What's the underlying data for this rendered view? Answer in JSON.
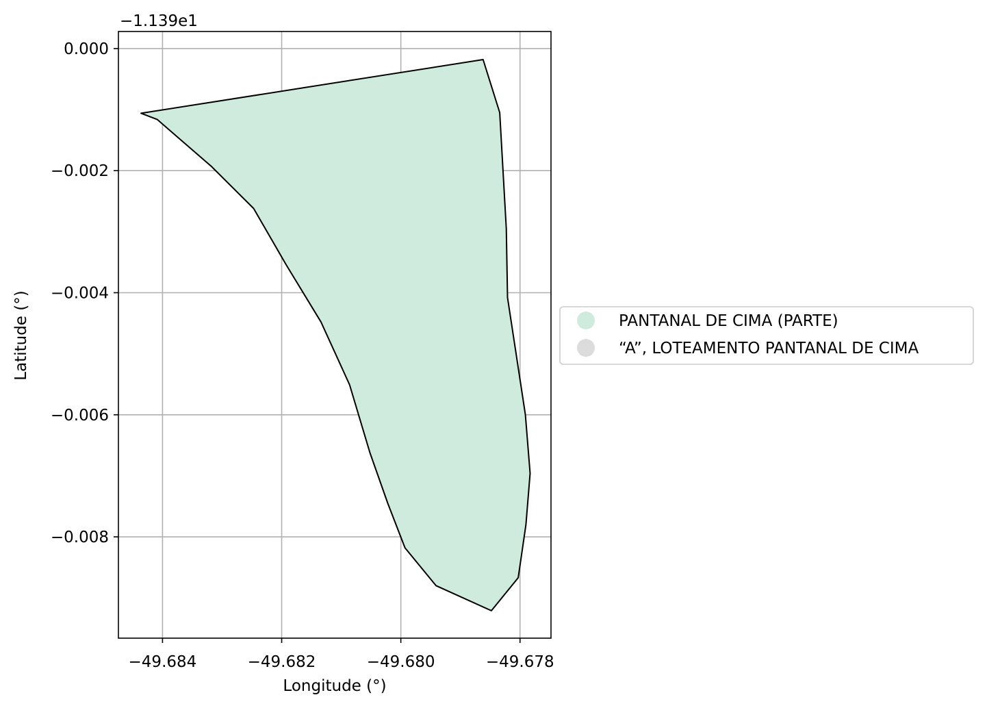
{
  "chart_data": {
    "type": "map",
    "xlabel": "Longitude (°)",
    "ylabel": "Latitude (°)",
    "offset_label": "−1.139e1",
    "xlim": [
      -49.68474,
      -49.67748
    ],
    "ylim": [
      -0.00966,
      0.00028
    ],
    "x_ticks": [
      {
        "value": -49.684,
        "label": "−49.684"
      },
      {
        "value": -49.682,
        "label": "−49.682"
      },
      {
        "value": -49.68,
        "label": "−49.680"
      },
      {
        "value": -49.678,
        "label": "−49.678"
      }
    ],
    "y_ticks": [
      {
        "value": 0.0,
        "label": "0.000"
      },
      {
        "value": -0.002,
        "label": "−0.002"
      },
      {
        "value": -0.004,
        "label": "−0.004"
      },
      {
        "value": -0.006,
        "label": "−0.006"
      },
      {
        "value": -0.008,
        "label": "−0.008"
      }
    ],
    "grid": true,
    "legend_position": "right-center",
    "series": [
      {
        "name": "PANTANAL DE CIMA (PARTE)",
        "color": "#cfebde",
        "stroke": "#000000",
        "polygon": [
          [
            -49.68436,
            -0.00106
          ],
          [
            -49.67862,
            -0.00018
          ],
          [
            -49.67834,
            -0.00105
          ],
          [
            -49.67823,
            -0.00295
          ],
          [
            -49.67821,
            -0.00408
          ],
          [
            -49.67791,
            -0.006
          ],
          [
            -49.67783,
            -0.00696
          ],
          [
            -49.6779,
            -0.0078
          ],
          [
            -49.67803,
            -0.00867
          ],
          [
            -49.67848,
            -0.00921
          ],
          [
            -49.67941,
            -0.0088
          ],
          [
            -49.67993,
            -0.00818
          ],
          [
            -49.68022,
            -0.00745
          ],
          [
            -49.68052,
            -0.00662
          ],
          [
            -49.68086,
            -0.00551
          ],
          [
            -49.68134,
            -0.00448
          ],
          [
            -49.68192,
            -0.00355
          ],
          [
            -49.68247,
            -0.00262
          ],
          [
            -49.68318,
            -0.00193
          ],
          [
            -49.68409,
            -0.00116
          ]
        ]
      },
      {
        "name": "“A”, LOTEAMENTO PANTANAL DE CIMA",
        "color": "#dcdcdc"
      }
    ]
  }
}
